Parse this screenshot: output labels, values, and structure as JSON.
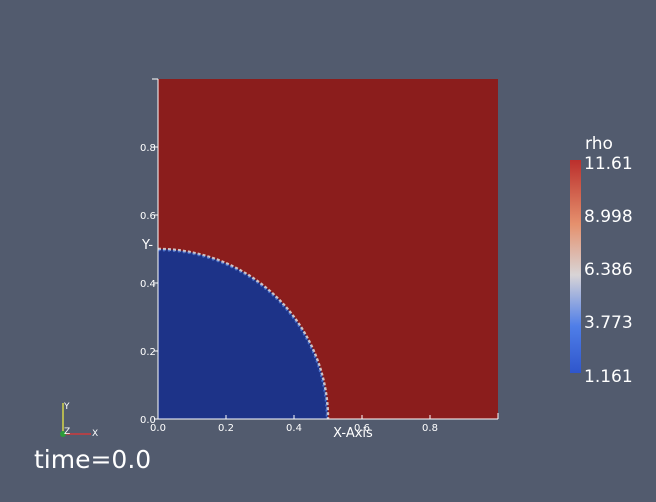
{
  "visualization": {
    "field": "rho",
    "time_label": "time=0.0",
    "colors": {
      "background": "#525b6e",
      "high": "#8b1d1c",
      "low": "#1d3388",
      "interface_mid": "#d7d4d8",
      "axis": "#ffffff"
    }
  },
  "plot": {
    "x_axis_label": "X-Axis",
    "y_axis_label": "Y-",
    "x_ticks": [
      "0.0",
      "0.2",
      "0.4",
      "0.6",
      "0.8"
    ],
    "y_ticks": [
      "0.0",
      "0.2",
      "0.4",
      "0.6",
      "0.8"
    ],
    "xlim": [
      0,
      1
    ],
    "ylim": [
      0,
      1
    ],
    "circle_center": [
      0,
      0
    ],
    "circle_radius": 0.5
  },
  "legend": {
    "title": "rho",
    "values": [
      "11.61",
      "8.998",
      "6.386",
      "3.773",
      "1.161"
    ]
  },
  "orientation_widget": {
    "x_label": "X",
    "y_label": "Y",
    "z_label": "Z"
  }
}
